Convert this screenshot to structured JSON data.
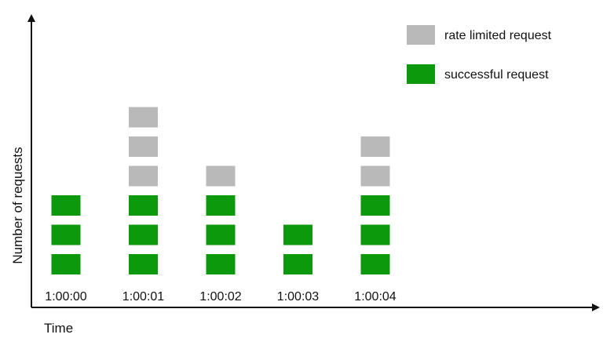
{
  "chart_data": {
    "type": "bar",
    "stacked": true,
    "xlabel": "Time",
    "ylabel": "Number of requests",
    "categories": [
      "1:00:00",
      "1:00:01",
      "1:00:02",
      "1:00:03",
      "1:00:04"
    ],
    "series": [
      {
        "name": "successful request",
        "color": "#0c9a0c",
        "values": [
          3,
          3,
          3,
          2,
          3
        ]
      },
      {
        "name": "rate limited request",
        "color": "#b9b9b9",
        "values": [
          0,
          3,
          1,
          0,
          2
        ]
      }
    ],
    "legend": {
      "position": "top-right",
      "entries": [
        {
          "label": "rate limited request",
          "color": "#b9b9b9"
        },
        {
          "label": "successful request",
          "color": "#0c9a0c"
        }
      ]
    },
    "grid": false
  }
}
